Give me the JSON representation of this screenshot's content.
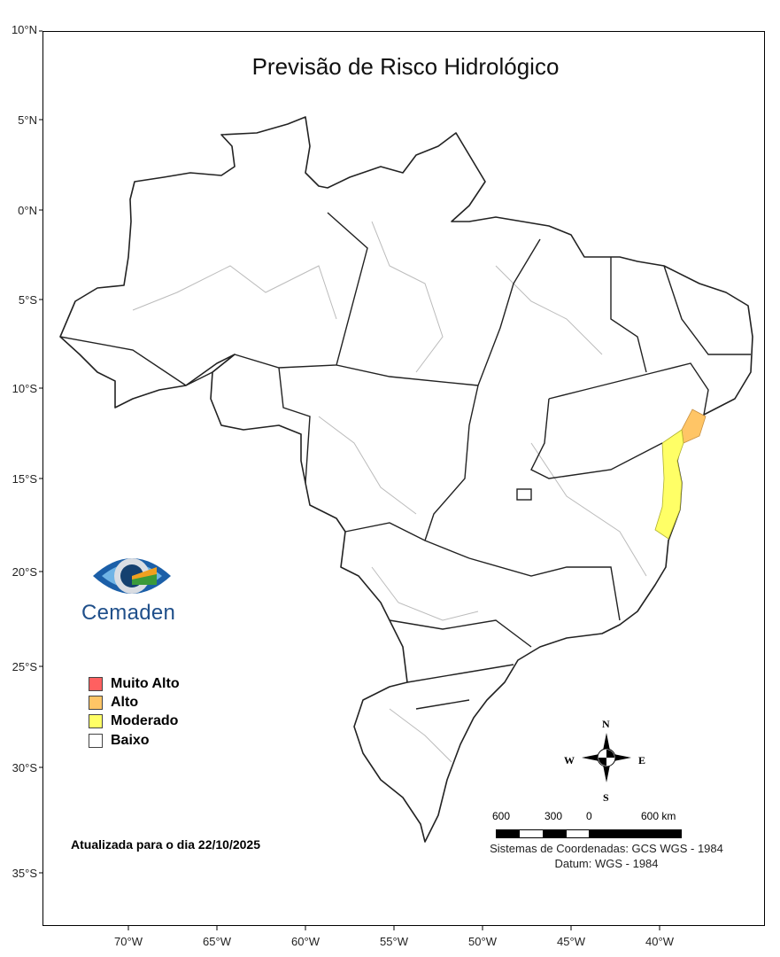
{
  "title": "Previsão de Risco Hidrológico",
  "lat_ticks": [
    "10°N",
    "5°N",
    "0°N",
    "5°S",
    "10°S",
    "15°S",
    "20°S",
    "25°S",
    "30°S",
    "35°S"
  ],
  "lon_ticks": [
    "70°W",
    "65°W",
    "60°W",
    "55°W",
    "50°W",
    "45°W",
    "40°W"
  ],
  "logo": {
    "text": "Cemaden"
  },
  "legend": [
    {
      "label": "Muito Alto",
      "color": "#ff6060"
    },
    {
      "label": "Alto",
      "color": "#ffc566"
    },
    {
      "label": "Moderado",
      "color": "#ffff66"
    },
    {
      "label": "Baixo",
      "color": "#ffffff"
    }
  ],
  "update_text": "Atualizada para o dia 22/10/2025",
  "compass": {
    "n": "N",
    "s": "S",
    "e": "E",
    "w": "W"
  },
  "scale_bar": {
    "labels": [
      "600",
      "300",
      "0",
      "600 km"
    ]
  },
  "coord_system": "Sistemas de Coordenadas: GCS WGS - 1984",
  "datum": "Datum: WGS - 1984"
}
